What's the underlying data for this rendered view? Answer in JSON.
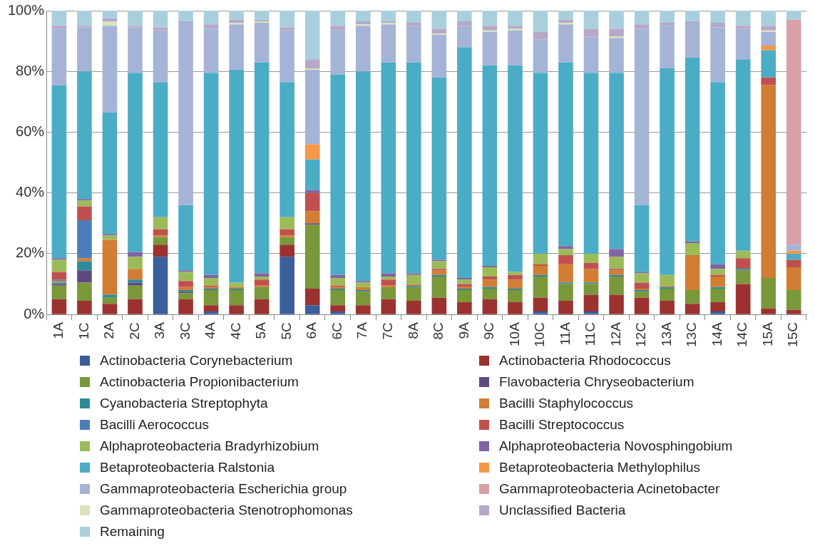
{
  "chart_data": {
    "type": "bar",
    "stacked": true,
    "grid": "y",
    "legend": "bottom",
    "categories": [
      "1A",
      "1C",
      "2A",
      "2C",
      "3A",
      "3C",
      "4A",
      "4C",
      "5A",
      "5C",
      "6A",
      "6C",
      "7A",
      "7C",
      "8A",
      "8C",
      "9A",
      "9C",
      "10A",
      "10C",
      "11A",
      "11C",
      "12A",
      "12C",
      "13A",
      "13C",
      "14A",
      "14C",
      "15A",
      "15C"
    ],
    "ylim": [
      0,
      100
    ],
    "yticks": [
      {
        "value": 0,
        "label": "0%"
      },
      {
        "value": 20,
        "label": "20%"
      },
      {
        "value": 40,
        "label": "40%"
      },
      {
        "value": 60,
        "label": "60%"
      },
      {
        "value": 80,
        "label": "80%"
      },
      {
        "value": 100,
        "label": "100%"
      }
    ],
    "series": [
      {
        "name": "Actinobacteria Corynebacterium",
        "color": "#3a5f9a",
        "values": [
          0,
          0,
          0,
          0,
          19,
          0,
          1,
          0,
          0,
          19,
          3,
          1,
          0,
          0,
          0,
          0,
          0,
          0,
          0,
          1,
          0,
          1,
          0,
          0,
          0,
          0,
          1,
          0,
          0,
          0
        ]
      },
      {
        "name": "Actinobacteria Rhodococcus",
        "color": "#9b3230",
        "values": [
          5,
          4.5,
          3.5,
          5,
          4,
          5,
          2,
          3,
          5,
          4,
          5.5,
          2,
          3,
          5,
          4.5,
          5.5,
          4,
          5,
          4,
          4.5,
          4.5,
          5.5,
          6.5,
          5.5,
          4.5,
          3.5,
          3,
          10,
          2,
          1.5
        ]
      },
      {
        "name": "Actinobacteria Propionibacterium",
        "color": "#78983a",
        "values": [
          4.5,
          6,
          2,
          4.5,
          2.5,
          2,
          5,
          5,
          4,
          2.5,
          21,
          5,
          4.5,
          4,
          4.5,
          7,
          4,
          3.5,
          4,
          7,
          5.5,
          3.5,
          6,
          2,
          4,
          4.5,
          4.5,
          4.5,
          10,
          6.5
        ]
      },
      {
        "name": "Flavobacteria Chryseobacterium",
        "color": "#5e4a7e",
        "values": [
          0.5,
          4,
          0,
          1,
          0,
          0.5,
          0,
          0,
          0,
          0,
          0.5,
          0,
          0,
          0,
          0,
          0,
          0,
          0,
          0,
          0,
          0,
          0,
          0,
          0,
          0,
          0,
          0,
          0,
          0,
          0
        ]
      },
      {
        "name": "Cyanobacteria Streptophyta",
        "color": "#2e8a9a",
        "values": [
          0.5,
          3,
          1,
          1,
          0,
          0.5,
          0.5,
          0.5,
          0,
          0,
          0,
          0.5,
          0.5,
          0,
          0.5,
          0.5,
          0.5,
          0.5,
          0.5,
          0.5,
          0.5,
          0.5,
          0.5,
          0.5,
          0.5,
          0,
          0.5,
          0.5,
          0,
          0
        ]
      },
      {
        "name": "Bacilli Staphylococcus",
        "color": "#d17d33",
        "values": [
          0.5,
          1,
          18,
          3.5,
          0.5,
          1,
          0.5,
          0.5,
          0.5,
          0.5,
          4,
          0.5,
          1,
          0.5,
          0.5,
          1.5,
          0.5,
          2.5,
          3,
          3,
          6,
          4.5,
          1.5,
          0.5,
          0.5,
          11.5,
          3.5,
          0,
          63.5,
          7.5
        ]
      },
      {
        "name": "Bacilli Aerococcus",
        "color": "#4a7ebb",
        "values": [
          0.5,
          12.5,
          0,
          0,
          0,
          0,
          0,
          0,
          0,
          0,
          0,
          0,
          0,
          0,
          0,
          0,
          0,
          0,
          0,
          0,
          0,
          0,
          0,
          0,
          0,
          0,
          0,
          0,
          0,
          0
        ]
      },
      {
        "name": "Bacilli Streptococcus",
        "color": "#c0504d",
        "values": [
          2.5,
          4.5,
          0,
          0,
          2,
          2,
          0.5,
          0,
          2,
          2,
          6,
          0.5,
          0,
          2,
          0,
          0.5,
          1,
          1,
          1.5,
          0.5,
          3,
          2,
          0.5,
          2,
          0,
          0,
          0.5,
          3.5,
          2.5,
          2.5
        ]
      },
      {
        "name": "Alphaproteobacteria Bradyrhizobium",
        "color": "#9bbb59",
        "values": [
          4,
          2,
          1.5,
          4,
          4,
          3,
          2.5,
          1.5,
          1,
          4,
          0,
          2.5,
          1.5,
          1,
          3,
          2.5,
          1.5,
          3,
          1,
          3.5,
          2,
          3,
          4,
          3,
          3.5,
          4,
          2,
          2.5,
          0,
          0
        ]
      },
      {
        "name": "Alphaproteobacteria Novosphingobium",
        "color": "#8064a2",
        "values": [
          0.5,
          0.5,
          0.5,
          1.5,
          0,
          0.5,
          1,
          0,
          1,
          0,
          1,
          1,
          0.5,
          1,
          0.5,
          0.5,
          0.5,
          0.5,
          0,
          0,
          1,
          0,
          2.5,
          0.5,
          0,
          0.5,
          1.5,
          0,
          0,
          0
        ]
      },
      {
        "name": "Betaproteobacteria Ralstonia",
        "color": "#4bacc6",
        "values": [
          57,
          42,
          40,
          59,
          44.5,
          21.5,
          66.5,
          70,
          69.5,
          44.5,
          10,
          66,
          69,
          69.5,
          69.5,
          60,
          76,
          66,
          68,
          59.5,
          60.5,
          59.5,
          58,
          22,
          68,
          60.5,
          60,
          63,
          9,
          2
        ]
      },
      {
        "name": "Betaproteobacteria Methylophilus",
        "color": "#f79646",
        "values": [
          0,
          0,
          0,
          0,
          0,
          0,
          0,
          0,
          0,
          0,
          5,
          0,
          0,
          0,
          0,
          0,
          0,
          0,
          0,
          0,
          0,
          0,
          0,
          0,
          0,
          0,
          0,
          0,
          1.5,
          1
        ]
      },
      {
        "name": "Gammaproteobacteria Escherichia group",
        "color": "#a5b4d6",
        "values": [
          18.5,
          14.5,
          28.5,
          15,
          17,
          60,
          14.5,
          15,
          13,
          17,
          24.5,
          14.5,
          15,
          12.5,
          12,
          14,
          7,
          11,
          11.5,
          11,
          12.5,
          12,
          11.5,
          58,
          14,
          11.5,
          18,
          10,
          4.5,
          2
        ]
      },
      {
        "name": "Gammaproteobacteria Acinetobacter",
        "color": "#d9a0a8",
        "values": [
          0,
          0,
          0,
          0,
          0,
          0,
          0,
          0,
          0,
          0,
          0,
          0,
          0,
          0,
          0,
          0,
          0,
          0,
          0,
          0,
          0,
          0,
          0,
          0,
          0,
          0,
          0,
          0,
          0,
          74
        ]
      },
      {
        "name": "Gammaproteobacteria Stenotrophomonas",
        "color": "#d7e4bd",
        "values": [
          0,
          0,
          1.5,
          0,
          0,
          0,
          0,
          0.5,
          0.5,
          0,
          0.5,
          0,
          0.5,
          0.5,
          0,
          0.5,
          0,
          0.5,
          0.5,
          0,
          0.5,
          0,
          0.5,
          0,
          0,
          0,
          0,
          0,
          0.5,
          0
        ]
      },
      {
        "name": "Unclassified Bacteria",
        "color": "#b7a8c8",
        "values": [
          1,
          0.5,
          1,
          0.5,
          1,
          0.5,
          1.5,
          1,
          0.5,
          1,
          3,
          1.5,
          1,
          0.5,
          1,
          1.5,
          1.5,
          1.5,
          1,
          2.5,
          1,
          2.5,
          2.5,
          1.5,
          1,
          0.5,
          1.5,
          1,
          1.5,
          0
        ]
      },
      {
        "name": "Remaining",
        "color": "#a9cfdc",
        "values": [
          5,
          5,
          2.5,
          5,
          5.5,
          3.5,
          4.5,
          3,
          3,
          5.5,
          16,
          5,
          3.5,
          3.5,
          4,
          6,
          3.5,
          5,
          5,
          7,
          3,
          6,
          6,
          4.5,
          4,
          3.5,
          4,
          5,
          5,
          3
        ]
      }
    ]
  }
}
